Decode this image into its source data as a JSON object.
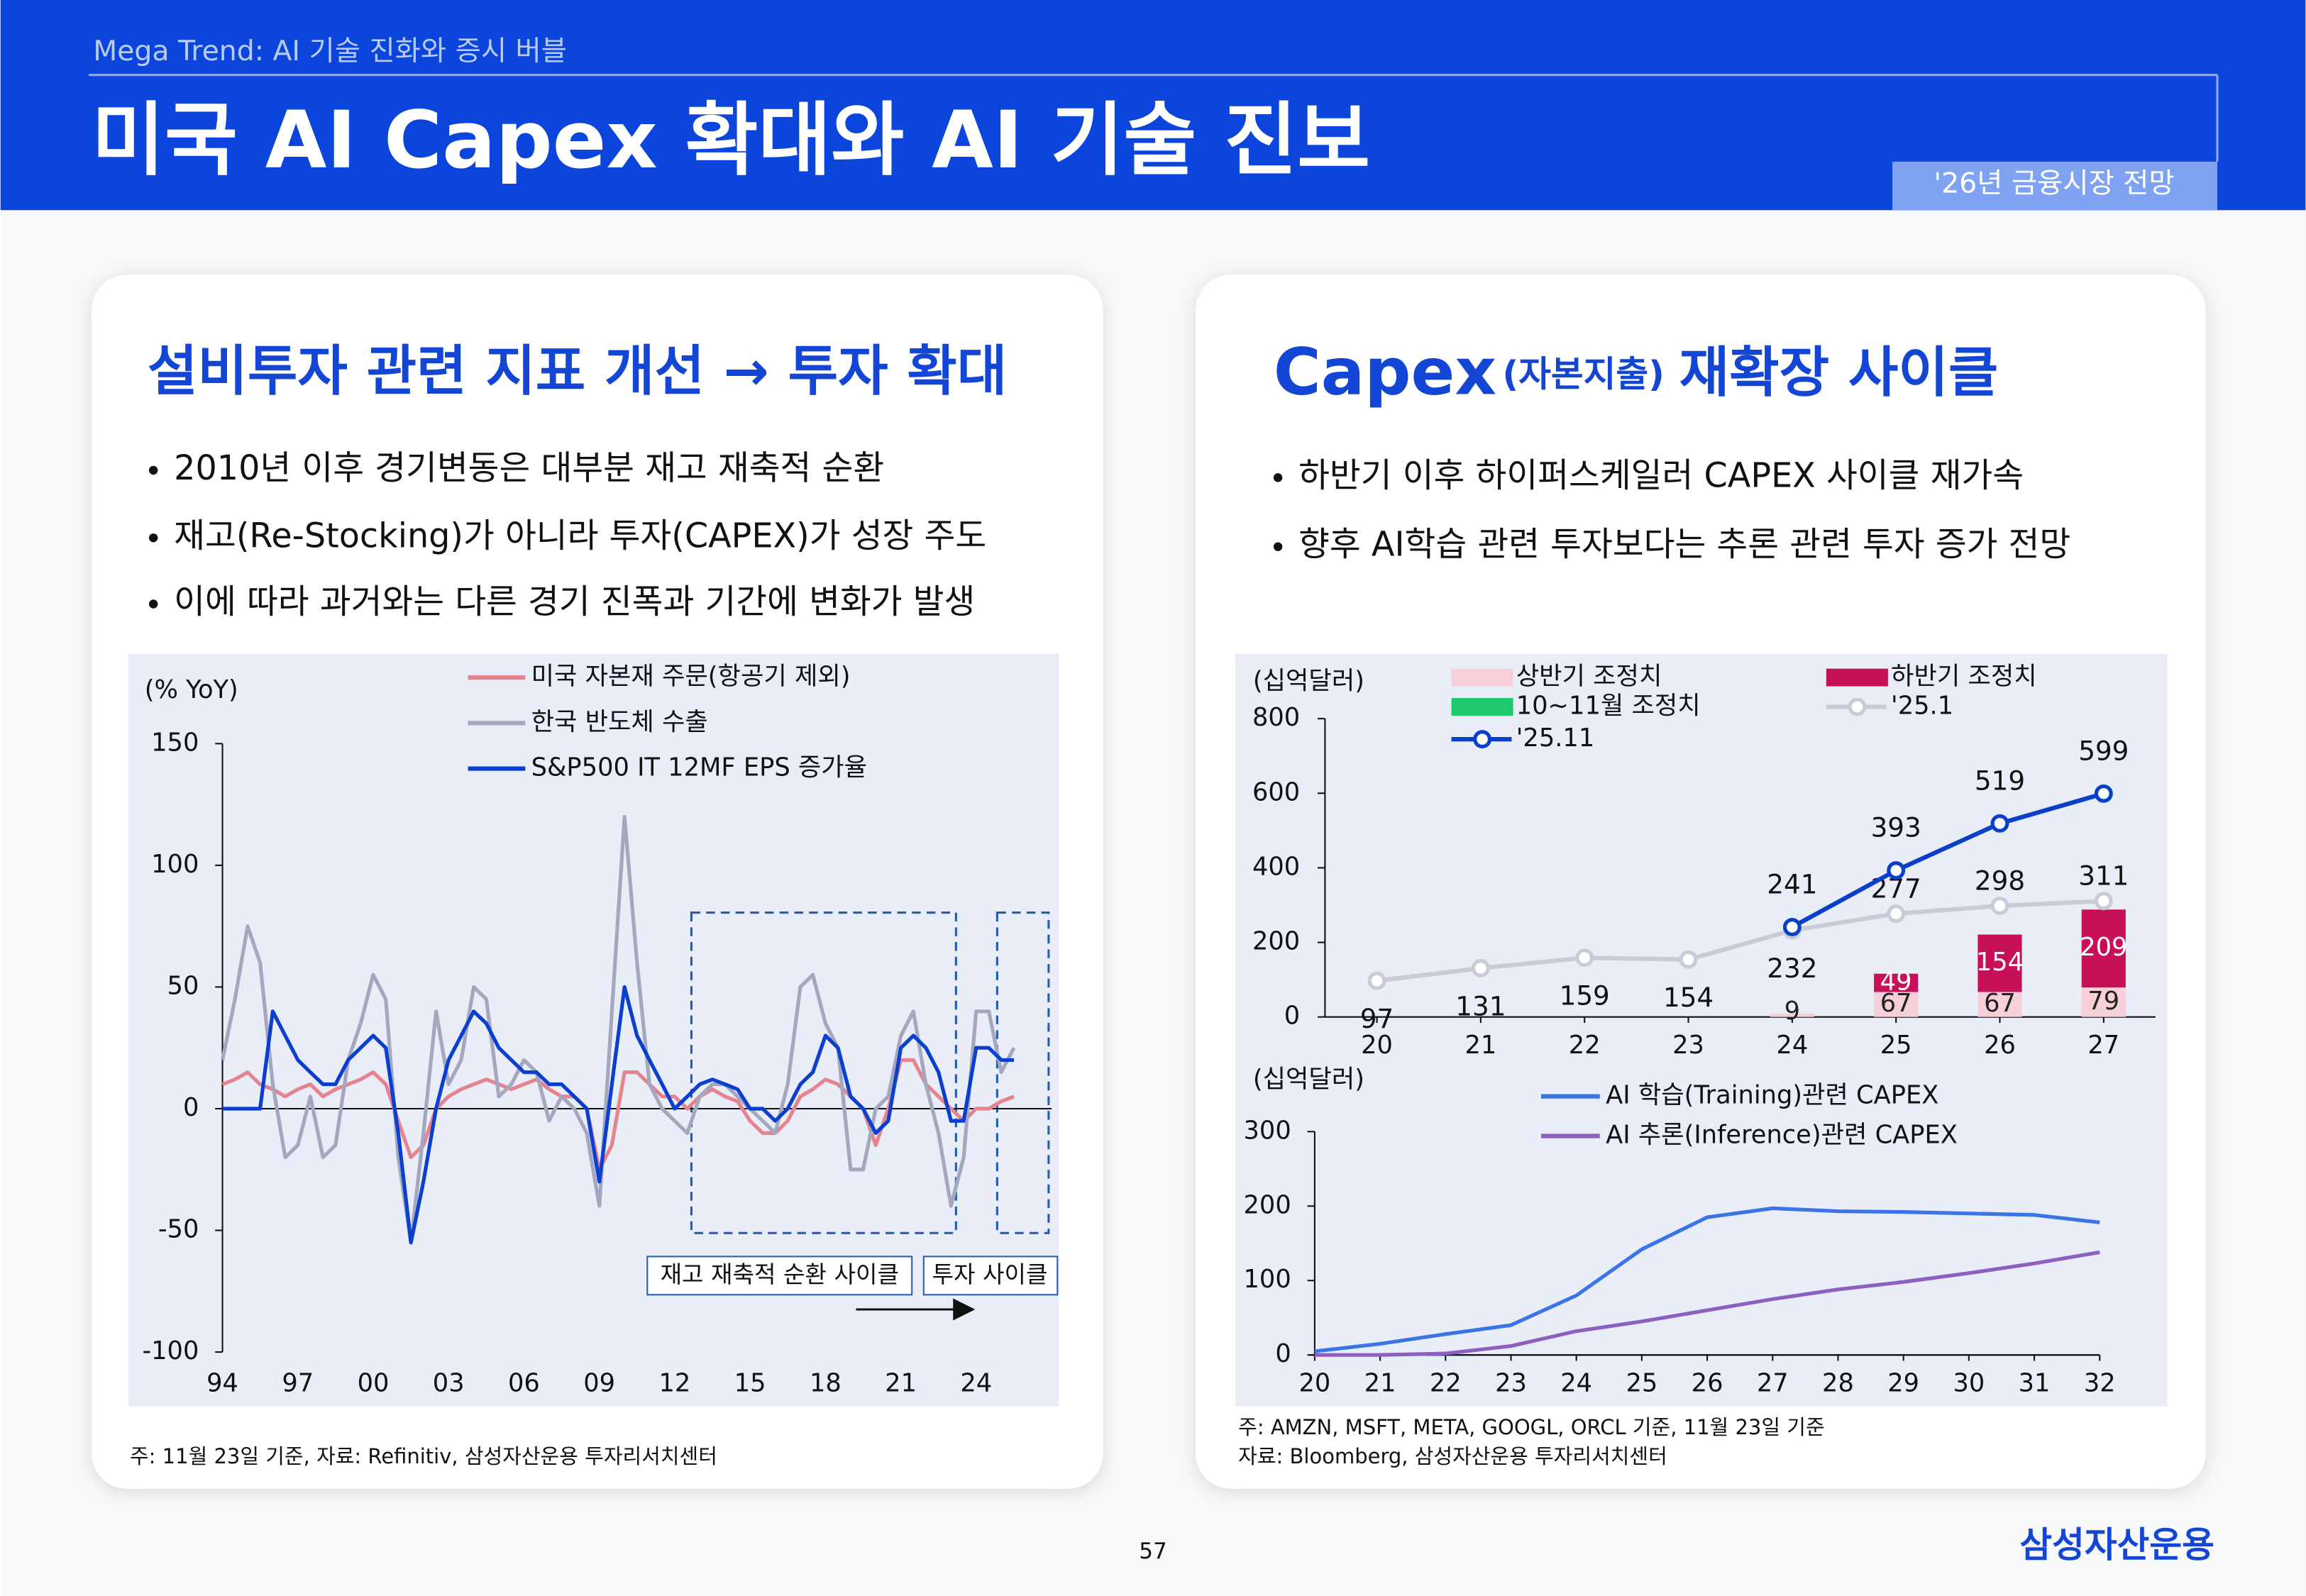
{
  "header": {
    "subtitle": "Mega Trend: AI 기술 진화와 증시 버블",
    "title": "미국 AI Capex 확대와 AI 기술 진보",
    "tag": "'26년 금융시장 전망"
  },
  "left_panel": {
    "heading": "설비투자 관련 지표 개선 → 투자 확대",
    "bullets": [
      "2010년 이후 경기변동은 대부분 재고 재축적 순환",
      "재고(Re-Stocking)가 아니라 투자(CAPEX)가 성장 주도",
      "이에 따라 과거와는 다른 경기 진폭과 기간에 변화가 발생"
    ],
    "note": "주: 11월 23일 기준, 자료: Refinitiv, 삼성자산운용 투자리서치센터"
  },
  "right_panel": {
    "heading": "Capex",
    "heading_sub": "(자본지출)",
    "heading_rest": "재확장 사이클",
    "bullets": [
      "하반기 이후 하이퍼스케일러 CAPEX 사이클 재가속",
      "향후 AI학습 관련 투자보다는 추론 관련 투자 증가 전망"
    ],
    "notes": [
      "주: AMZN, MSFT, META, GOOGL, ORCL 기준, 11월 23일 기준",
      "자료: Bloomberg, 삼성자산운용 투자리서치센터"
    ]
  },
  "footer": {
    "page": "57",
    "brand": "삼성자산운용"
  },
  "chart_data": [
    {
      "type": "line",
      "y_label": "(% YoY)",
      "x": [
        1994,
        1994.5,
        1995,
        1995.5,
        1996,
        1996.5,
        1997,
        1997.5,
        1998,
        1998.5,
        1999,
        1999.5,
        2000,
        2000.5,
        2001,
        2001.5,
        2002,
        2002.5,
        2003,
        2003.5,
        2004,
        2004.5,
        2005,
        2005.5,
        2006,
        2006.5,
        2007,
        2007.5,
        2008,
        2008.5,
        2009,
        2009.5,
        2010,
        2010.5,
        2011,
        2011.5,
        2012,
        2012.5,
        2013,
        2013.5,
        2014,
        2014.5,
        2015,
        2015.5,
        2016,
        2016.5,
        2017,
        2017.5,
        2018,
        2018.5,
        2019,
        2019.5,
        2020,
        2020.5,
        2021,
        2021.5,
        2022,
        2022.5,
        2023,
        2023.5,
        2024,
        2024.5,
        2025,
        2025.5
      ],
      "series": [
        {
          "name": "미국 자본재 주문(항공기 제외)",
          "color": "#e5838e",
          "values": [
            10,
            12,
            15,
            10,
            8,
            5,
            8,
            10,
            5,
            8,
            10,
            12,
            15,
            10,
            -5,
            -20,
            -15,
            0,
            5,
            8,
            10,
            12,
            10,
            8,
            10,
            12,
            8,
            5,
            5,
            0,
            -25,
            -15,
            15,
            15,
            10,
            5,
            5,
            0,
            5,
            8,
            5,
            3,
            -5,
            -10,
            -10,
            -5,
            5,
            8,
            12,
            10,
            5,
            0,
            -15,
            0,
            20,
            20,
            10,
            5,
            0,
            -5,
            0,
            0,
            3,
            5
          ]
        },
        {
          "name": "한국 반도체 수출",
          "color": "#a3a8bf",
          "values": [
            20,
            45,
            75,
            60,
            10,
            -20,
            -15,
            5,
            -20,
            -15,
            20,
            35,
            55,
            45,
            -20,
            -55,
            -10,
            40,
            10,
            20,
            50,
            45,
            5,
            10,
            20,
            15,
            -5,
            5,
            0,
            -10,
            -40,
            40,
            120,
            60,
            10,
            0,
            -5,
            -10,
            5,
            10,
            10,
            5,
            0,
            -5,
            -10,
            10,
            50,
            55,
            35,
            25,
            -25,
            -25,
            0,
            5,
            30,
            40,
            10,
            -10,
            -40,
            -20,
            40,
            40,
            15,
            25
          ]
        },
        {
          "name": "S&P500 IT 12MF EPS 증가율",
          "color": "#0b3fd0",
          "values": [
            0,
            0,
            0,
            0,
            40,
            30,
            20,
            15,
            10,
            10,
            20,
            25,
            30,
            25,
            -10,
            -55,
            -30,
            0,
            20,
            30,
            40,
            35,
            25,
            20,
            15,
            15,
            10,
            10,
            5,
            0,
            -30,
            10,
            50,
            30,
            20,
            10,
            0,
            5,
            10,
            12,
            10,
            8,
            0,
            0,
            -5,
            0,
            10,
            15,
            30,
            25,
            5,
            0,
            -10,
            -5,
            25,
            30,
            25,
            15,
            -5,
            -5,
            25,
            25,
            20,
            20
          ]
        }
      ],
      "xlim": [
        1994,
        2027
      ],
      "xticks": [
        {
          "value": 1994,
          "label": "94"
        },
        {
          "value": 1997,
          "label": "97"
        },
        {
          "value": 2000,
          "label": "00"
        },
        {
          "value": 2003,
          "label": "03"
        },
        {
          "value": 2006,
          "label": "06"
        },
        {
          "value": 2009,
          "label": "09"
        },
        {
          "value": 2012,
          "label": "12"
        },
        {
          "value": 2015,
          "label": "15"
        },
        {
          "value": 2018,
          "label": "18"
        },
        {
          "value": 2021,
          "label": "21"
        },
        {
          "value": 2024,
          "label": "24"
        }
      ],
      "ylim": [
        -100,
        150
      ],
      "yticks": [
        150,
        100,
        50,
        0,
        -50,
        -100
      ],
      "annotations": [
        "재고 재축적 순환 사이클",
        "투자 사이클"
      ]
    },
    {
      "type": "bar_line",
      "y_label": "(십억달러)",
      "categories": [
        "20",
        "21",
        "22",
        "23",
        "24",
        "25",
        "26",
        "27"
      ],
      "series": [
        {
          "name": "상반기  조정치",
          "kind": "bar",
          "color": "#f6cfd8",
          "label_color": "#222",
          "values": [
            null,
            null,
            null,
            null,
            9,
            67,
            67,
            79
          ]
        },
        {
          "name": "하반기 조정치",
          "kind": "bar",
          "color": "#c8105a",
          "label_color": "#fff",
          "values": [
            null,
            null,
            null,
            null,
            null,
            49,
            154,
            209
          ]
        },
        {
          "name": "10~11월 조정치",
          "kind": "bar",
          "color": "#1ec96b",
          "label_color": "#222",
          "values": [
            null,
            null,
            null,
            null,
            null,
            null,
            null,
            null
          ]
        },
        {
          "name": "'25.1",
          "kind": "line",
          "color": "#c8ccd6",
          "values": [
            97,
            131,
            159,
            154,
            232,
            277,
            298,
            311
          ]
        },
        {
          "name": "'25.11",
          "kind": "line",
          "color": "#0a3fc9",
          "values": [
            null,
            null,
            null,
            null,
            241,
            393,
            519,
            599
          ]
        }
      ],
      "ylim": [
        0,
        800
      ],
      "yticks": [
        0,
        200,
        400,
        600,
        800
      ]
    },
    {
      "type": "line",
      "y_label": "(십억달러)",
      "categories": [
        "20",
        "21",
        "22",
        "23",
        "24",
        "25",
        "26",
        "27",
        "28",
        "29",
        "30",
        "31",
        "32"
      ],
      "series": [
        {
          "name": "AI 학습(Training)관련 CAPEX",
          "color": "#3a74e6",
          "values": [
            5,
            15,
            28,
            40,
            80,
            142,
            185,
            197,
            193,
            192,
            190,
            188,
            178
          ]
        },
        {
          "name": "AI 추론(Inference)관련 CAPEX",
          "color": "#8c5fc0",
          "values": [
            0,
            0,
            2,
            12,
            32,
            45,
            60,
            75,
            88,
            98,
            110,
            123,
            138
          ]
        }
      ],
      "ylim": [
        0,
        300
      ],
      "yticks": [
        0,
        100,
        200,
        300
      ]
    }
  ]
}
